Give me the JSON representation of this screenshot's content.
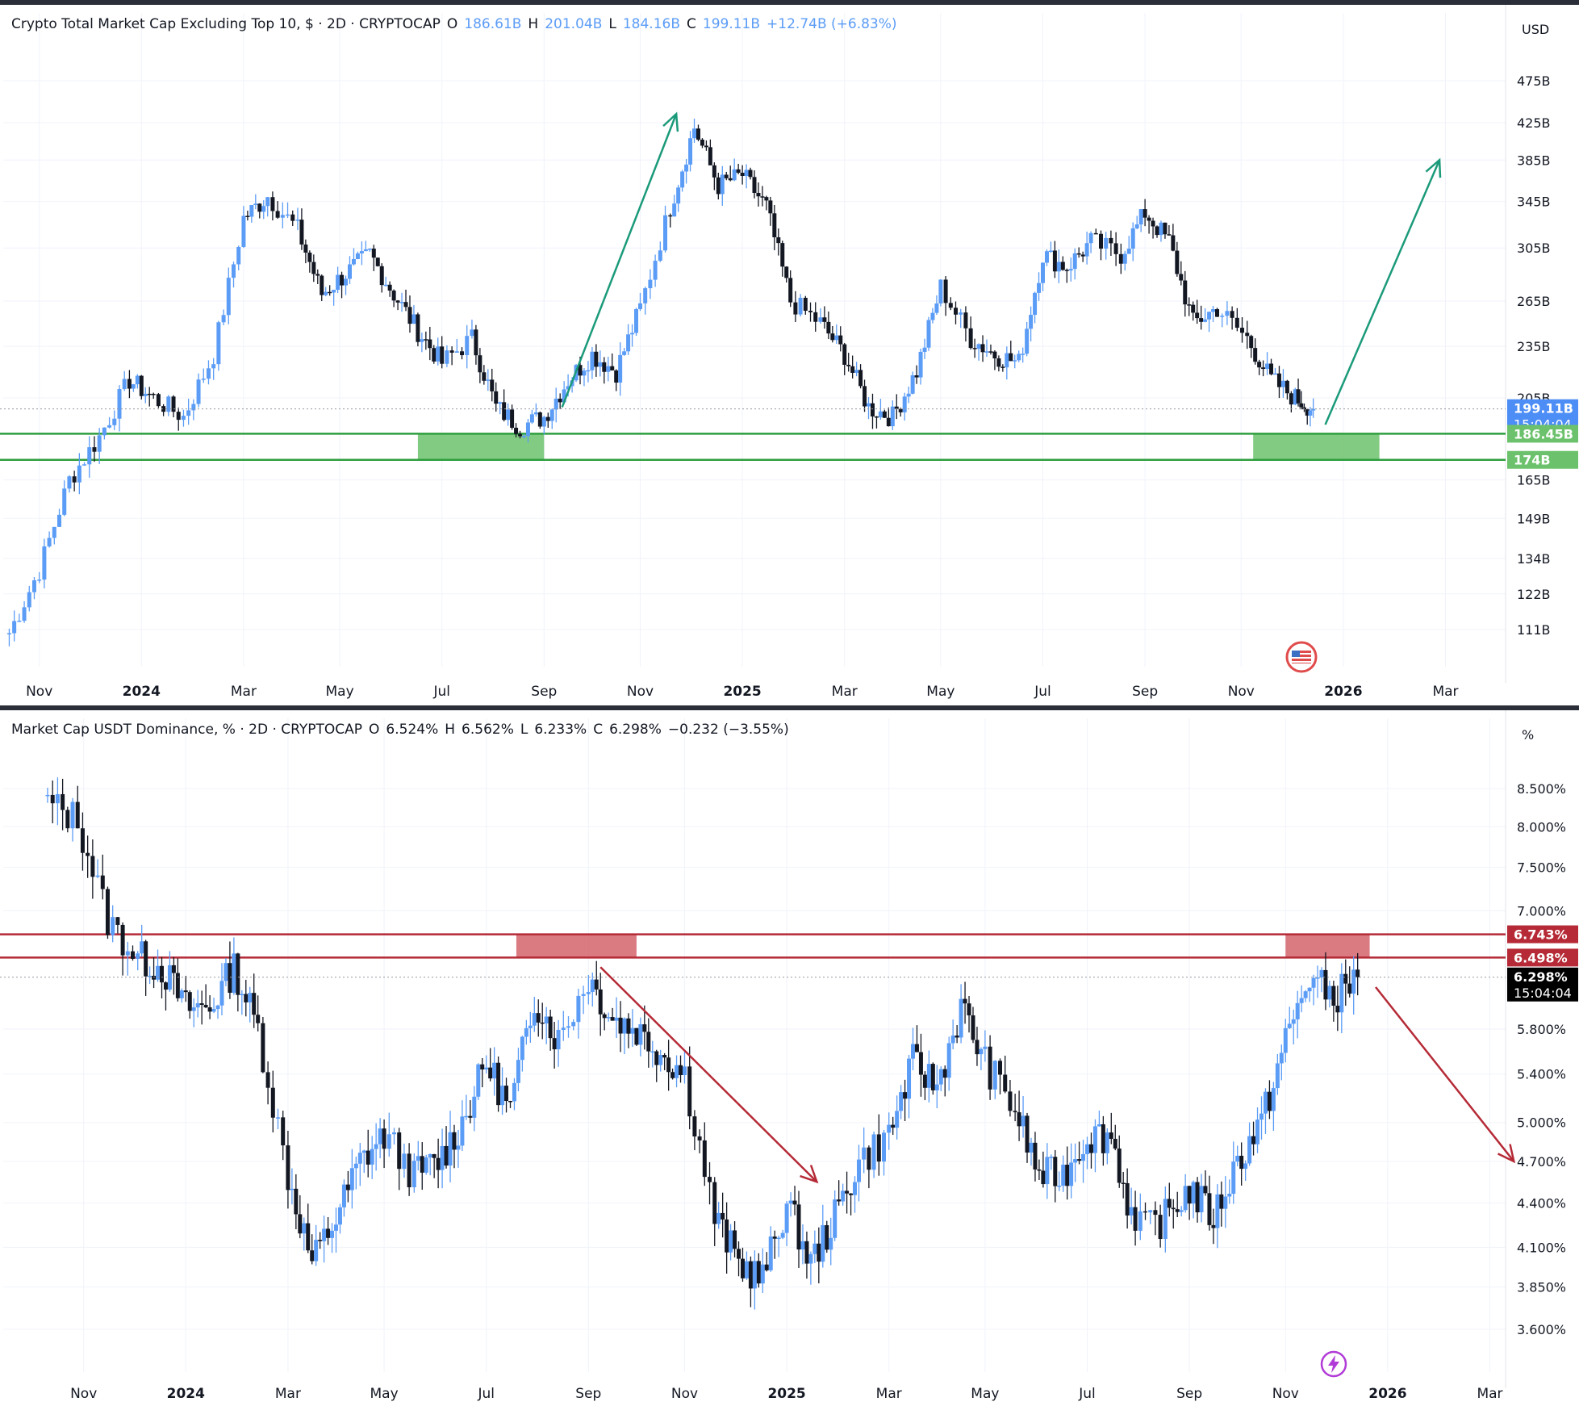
{
  "colors": {
    "up": "#5b9cf6",
    "down": "#131722",
    "support_zone": "#6cc26c",
    "support_line": "#2e9e3e",
    "resistance_zone": "#d3636b",
    "resistance_line": "#b52a36",
    "arrow_up": "#1b9a7a",
    "arrow_down": "#b52a36",
    "price_tag": "#4c8df6"
  },
  "time_axis": {
    "labels": [
      "Nov",
      "2024",
      "Mar",
      "May",
      "Jul",
      "Sep",
      "Nov",
      "2025",
      "Mar",
      "May",
      "Jul",
      "Sep",
      "Nov",
      "2026",
      "Mar"
    ],
    "bold": [
      "2024",
      "2025",
      "2026"
    ]
  },
  "chart_data": [
    {
      "type": "candlestick",
      "title": "Crypto Total Market Cap Excluding Top 10, $ · 2D · CRYPTOCAP",
      "ohlc_legend": {
        "O": "186.61B",
        "H": "201.04B",
        "L": "184.16B",
        "C": "199.11B",
        "change": "+12.74B (+6.83%)"
      },
      "unit_label": "USD",
      "y_ticks": [
        "475B",
        "425B",
        "385B",
        "345B",
        "305B",
        "265B",
        "235B",
        "205B",
        "165B",
        "149B",
        "134B",
        "122B",
        "111B"
      ],
      "y_range": [
        105,
        500
      ],
      "scale": "log",
      "close_path": [
        [
          2023.78,
          110
        ],
        [
          2023.83,
          130
        ],
        [
          2023.88,
          165
        ],
        [
          2023.93,
          185
        ],
        [
          2023.98,
          215
        ],
        [
          2024.02,
          205
        ],
        [
          2024.07,
          195
        ],
        [
          2024.12,
          230
        ],
        [
          2024.17,
          330
        ],
        [
          2024.21,
          350
        ],
        [
          2024.26,
          320
        ],
        [
          2024.3,
          270
        ],
        [
          2024.34,
          285
        ],
        [
          2024.38,
          300
        ],
        [
          2024.42,
          270
        ],
        [
          2024.46,
          245
        ],
        [
          2024.5,
          225
        ],
        [
          2024.55,
          240
        ],
        [
          2024.59,
          200
        ],
        [
          2024.63,
          190
        ],
        [
          2024.67,
          195
        ],
        [
          2024.71,
          215
        ],
        [
          2024.75,
          230
        ],
        [
          2024.79,
          220
        ],
        [
          2024.83,
          260
        ],
        [
          2024.88,
          340
        ],
        [
          2024.92,
          420
        ],
        [
          2024.96,
          360
        ],
        [
          2025.0,
          370
        ],
        [
          2025.04,
          340
        ],
        [
          2025.08,
          265
        ],
        [
          2025.13,
          250
        ],
        [
          2025.17,
          230
        ],
        [
          2025.21,
          200
        ],
        [
          2025.25,
          195
        ],
        [
          2025.29,
          220
        ],
        [
          2025.33,
          275
        ],
        [
          2025.38,
          240
        ],
        [
          2025.42,
          230
        ],
        [
          2025.46,
          225
        ],
        [
          2025.5,
          300
        ],
        [
          2025.54,
          290
        ],
        [
          2025.58,
          310
        ],
        [
          2025.63,
          300
        ],
        [
          2025.67,
          335
        ],
        [
          2025.71,
          310
        ],
        [
          2025.75,
          250
        ],
        [
          2025.79,
          260
        ],
        [
          2025.84,
          240
        ],
        [
          2025.88,
          215
        ],
        [
          2025.92,
          205
        ],
        [
          2025.95,
          199.11
        ]
      ],
      "horizontal_lines": [
        "186.45B",
        "174B"
      ],
      "support_zone": {
        "from": "174B",
        "to": "186.45B"
      },
      "price_tags": [
        {
          "value": "199.11B",
          "sub": "15:04:04"
        },
        {
          "value": "186.45B"
        },
        {
          "value": "174B"
        }
      ],
      "arrows": [
        {
          "direction": "up",
          "from": [
            2024.7,
            200
          ],
          "to": [
            2024.89,
            435
          ]
        },
        {
          "direction": "up",
          "from": [
            2025.97,
            191
          ],
          "to": [
            2026.16,
            385
          ]
        }
      ]
    },
    {
      "type": "candlestick",
      "title": "Market Cap USDT Dominance, % · 2D · CRYPTOCAP",
      "ohlc_legend": {
        "O": "6.524%",
        "H": "6.562%",
        "L": "6.233%",
        "C": "6.298%",
        "change": "−0.232 (−3.55%)"
      },
      "unit_label": "%",
      "y_ticks": [
        "8.500%",
        "8.000%",
        "7.500%",
        "7.000%",
        "5.800%",
        "5.400%",
        "5.000%",
        "4.700%",
        "4.400%",
        "4.100%",
        "3.850%",
        "3.600%"
      ],
      "y_range": [
        3.45,
        8.8
      ],
      "scale": "log",
      "close_path": [
        [
          2023.77,
          8.3
        ],
        [
          2023.82,
          8.1
        ],
        [
          2023.87,
          6.9
        ],
        [
          2023.92,
          6.5
        ],
        [
          2023.96,
          6.4
        ],
        [
          2024.0,
          6.0
        ],
        [
          2024.04,
          6.0
        ],
        [
          2024.08,
          6.4
        ],
        [
          2024.12,
          5.8
        ],
        [
          2024.17,
          4.6
        ],
        [
          2024.21,
          4.0
        ],
        [
          2024.25,
          4.3
        ],
        [
          2024.29,
          4.7
        ],
        [
          2024.33,
          4.9
        ],
        [
          2024.38,
          4.6
        ],
        [
          2024.42,
          4.7
        ],
        [
          2024.46,
          5.0
        ],
        [
          2024.5,
          5.5
        ],
        [
          2024.54,
          5.1
        ],
        [
          2024.58,
          6.1
        ],
        [
          2024.62,
          5.7
        ],
        [
          2024.67,
          6.3
        ],
        [
          2024.71,
          5.9
        ],
        [
          2024.75,
          5.8
        ],
        [
          2024.79,
          5.6
        ],
        [
          2024.83,
          5.4
        ],
        [
          2024.88,
          4.3
        ],
        [
          2024.92,
          4.0
        ],
        [
          2024.96,
          3.9
        ],
        [
          2025.0,
          4.4
        ],
        [
          2025.04,
          4.0
        ],
        [
          2025.08,
          4.3
        ],
        [
          2025.12,
          4.7
        ],
        [
          2025.17,
          4.9
        ],
        [
          2025.21,
          5.5
        ],
        [
          2025.25,
          5.3
        ],
        [
          2025.29,
          6.0
        ],
        [
          2025.33,
          5.5
        ],
        [
          2025.38,
          5.1
        ],
        [
          2025.42,
          4.6
        ],
        [
          2025.46,
          4.6
        ],
        [
          2025.5,
          4.9
        ],
        [
          2025.54,
          4.9
        ],
        [
          2025.58,
          4.2
        ],
        [
          2025.63,
          4.3
        ],
        [
          2025.67,
          4.5
        ],
        [
          2025.71,
          4.3
        ],
        [
          2025.75,
          4.7
        ],
        [
          2025.79,
          5.0
        ],
        [
          2025.83,
          5.7
        ],
        [
          2025.87,
          6.3
        ],
        [
          2025.91,
          6.1
        ],
        [
          2025.95,
          6.298
        ]
      ],
      "horizontal_lines": [
        "6.743%",
        "6.498%"
      ],
      "resistance_zone": {
        "from": "6.498%",
        "to": "6.743%"
      },
      "price_tags": [
        {
          "value": "6.743%"
        },
        {
          "value": "6.498%"
        },
        {
          "value": "6.298%",
          "sub": "15:04:04"
        }
      ],
      "arrows": [
        {
          "direction": "down",
          "from": [
            2024.69,
            6.4
          ],
          "to": [
            2025.05,
            4.55
          ]
        },
        {
          "direction": "down",
          "from": [
            2025.98,
            6.2
          ],
          "to": [
            2026.21,
            4.7
          ]
        }
      ]
    }
  ]
}
